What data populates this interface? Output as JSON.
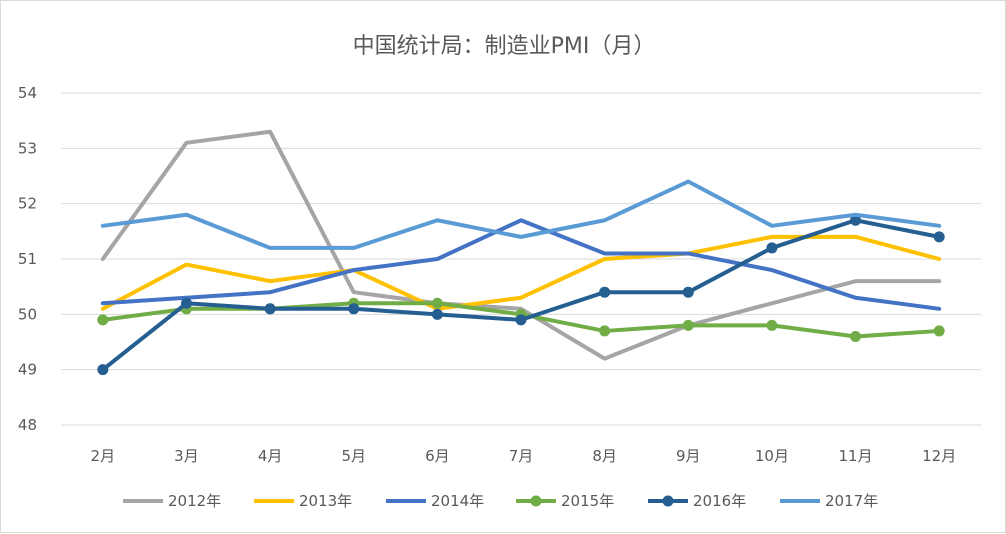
{
  "chart_data": {
    "type": "line",
    "title": "中国统计局：制造业PMI（月）",
    "xlabel": "",
    "ylabel": "",
    "categories": [
      "2月",
      "3月",
      "4月",
      "5月",
      "6月",
      "7月",
      "8月",
      "9月",
      "10月",
      "11月",
      "12月"
    ],
    "ylim": [
      48,
      54
    ],
    "yticks": [
      "48",
      "49",
      "50",
      "51",
      "52",
      "53",
      "54"
    ],
    "grid": true,
    "legend_position": "bottom",
    "series": [
      {
        "name": "2012年",
        "color": "#a5a5a5",
        "marker": false,
        "values": [
          51.0,
          53.1,
          53.3,
          50.4,
          50.2,
          50.1,
          49.2,
          49.8,
          50.2,
          50.6,
          50.6
        ]
      },
      {
        "name": "2013年",
        "color": "#ffc000",
        "marker": false,
        "values": [
          50.1,
          50.9,
          50.6,
          50.8,
          50.1,
          50.3,
          51.0,
          51.1,
          51.4,
          51.4,
          51.0
        ]
      },
      {
        "name": "2014年",
        "color": "#4472c4",
        "marker": false,
        "values": [
          50.2,
          50.3,
          50.4,
          50.8,
          51.0,
          51.7,
          51.1,
          51.1,
          50.8,
          50.3,
          50.1
        ]
      },
      {
        "name": "2015年",
        "color": "#70ad47",
        "marker": true,
        "values": [
          49.9,
          50.1,
          50.1,
          50.2,
          50.2,
          50.0,
          49.7,
          49.8,
          49.8,
          49.6,
          49.7
        ]
      },
      {
        "name": "2016年",
        "color": "#255e91",
        "marker": true,
        "values": [
          49.0,
          50.2,
          50.1,
          50.1,
          50.0,
          49.9,
          50.4,
          50.4,
          51.2,
          51.7,
          51.4
        ]
      },
      {
        "name": "2017年",
        "color": "#5b9bd5",
        "marker": false,
        "values": [
          51.6,
          51.8,
          51.2,
          51.2,
          51.7,
          51.4,
          51.7,
          52.4,
          51.6,
          51.8,
          51.6
        ]
      }
    ]
  }
}
